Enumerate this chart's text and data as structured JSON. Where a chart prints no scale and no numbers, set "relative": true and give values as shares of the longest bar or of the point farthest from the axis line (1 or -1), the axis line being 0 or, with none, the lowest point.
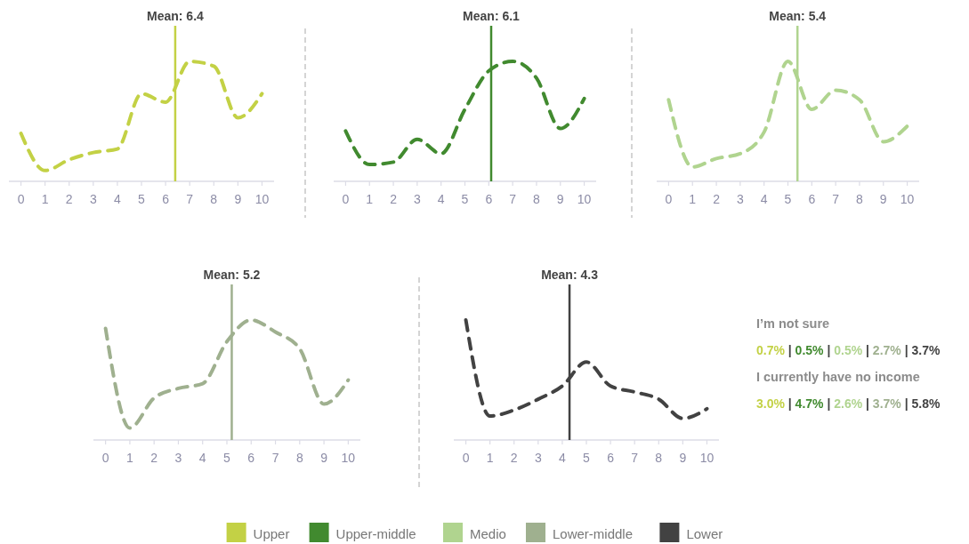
{
  "chart_data": [
    {
      "type": "line",
      "relative": true,
      "x": [
        0,
        1,
        2,
        3,
        4,
        5,
        6,
        7,
        8,
        9,
        10
      ],
      "xlim": [
        -0.5,
        10.5
      ],
      "xticks": [
        0,
        1,
        2,
        3,
        4,
        5,
        6,
        7,
        8,
        9,
        10
      ],
      "line_style": "dashed",
      "legend": "bottom",
      "ref_lines": [
        {
          "axis": "x",
          "value": 6.4,
          "label": "Mean: 6.4",
          "color": "#c3d145"
        }
      ],
      "series": [
        {
          "name": "Upper",
          "color": "#c3d145",
          "values": [
            0.4,
            0.09,
            0.18,
            0.24,
            0.27,
            0.73,
            0.66,
            1,
            0.96,
            0.53,
            0.73
          ]
        }
      ]
    },
    {
      "type": "line",
      "relative": true,
      "x": [
        0,
        1,
        2,
        3,
        4,
        5,
        6,
        7,
        8,
        9,
        10
      ],
      "xlim": [
        -0.5,
        10.5
      ],
      "xticks": [
        0,
        1,
        2,
        3,
        4,
        5,
        6,
        7,
        8,
        9,
        10
      ],
      "line_style": "dashed",
      "legend": "bottom",
      "ref_lines": [
        {
          "axis": "x",
          "value": 6.1,
          "label": "Mean: 6.1",
          "color": "#418a2f"
        }
      ],
      "series": [
        {
          "name": "Upper-middle",
          "color": "#418a2f",
          "values": [
            0.42,
            0.14,
            0.16,
            0.35,
            0.23,
            0.6,
            0.92,
            1,
            0.86,
            0.44,
            0.69
          ]
        }
      ]
    },
    {
      "type": "line",
      "relative": true,
      "x": [
        0,
        1,
        2,
        3,
        4,
        5,
        6,
        7,
        8,
        9,
        10
      ],
      "xlim": [
        -0.5,
        10.5
      ],
      "xticks": [
        0,
        1,
        2,
        3,
        4,
        5,
        6,
        7,
        8,
        9,
        10
      ],
      "line_style": "dashed",
      "legend": "bottom",
      "ref_lines": [
        {
          "axis": "x",
          "value": 5.4,
          "label": "Mean: 5.4",
          "color": "#b0d48f"
        }
      ],
      "series": [
        {
          "name": "Medio",
          "color": "#b0d48f",
          "values": [
            0.68,
            0.12,
            0.19,
            0.23,
            0.41,
            1,
            0.6,
            0.76,
            0.68,
            0.33,
            0.46
          ]
        }
      ]
    },
    {
      "type": "line",
      "relative": true,
      "x": [
        0,
        1,
        2,
        3,
        4,
        5,
        6,
        7,
        8,
        9,
        10
      ],
      "xlim": [
        -0.5,
        10.5
      ],
      "xticks": [
        0,
        1,
        2,
        3,
        4,
        5,
        6,
        7,
        8,
        9,
        10
      ],
      "line_style": "dashed",
      "legend": "bottom",
      "ref_lines": [
        {
          "axis": "x",
          "value": 5.2,
          "label": "Mean: 5.2",
          "color": "#9fb08f"
        }
      ],
      "series": [
        {
          "name": "Lower-middle",
          "color": "#9fb08f",
          "values": [
            0.93,
            0.1,
            0.35,
            0.43,
            0.47,
            0.82,
            1,
            0.9,
            0.76,
            0.3,
            0.5
          ]
        }
      ]
    },
    {
      "type": "line",
      "relative": true,
      "x": [
        0,
        1,
        2,
        3,
        4,
        5,
        6,
        7,
        8,
        9,
        10
      ],
      "xlim": [
        -0.5,
        10.5
      ],
      "xticks": [
        0,
        1,
        2,
        3,
        4,
        5,
        6,
        7,
        8,
        9,
        10
      ],
      "line_style": "dashed",
      "legend": "bottom",
      "ref_lines": [
        {
          "axis": "x",
          "value": 4.3,
          "label": "Mean: 4.3",
          "color": "#424242"
        }
      ],
      "series": [
        {
          "name": "Lower",
          "color": "#424242",
          "values": [
            1,
            0.2,
            0.25,
            0.34,
            0.45,
            0.65,
            0.45,
            0.4,
            0.34,
            0.18,
            0.26
          ]
        }
      ],
      "annotations": [
        "I’m not sure",
        "0.7% | 0.5% | 0.5% | 2.7% | 3.7%",
        "I currently have no income",
        "3.0% | 4.7% | 2.6% | 3.7% | 5.8%"
      ]
    }
  ]
}
